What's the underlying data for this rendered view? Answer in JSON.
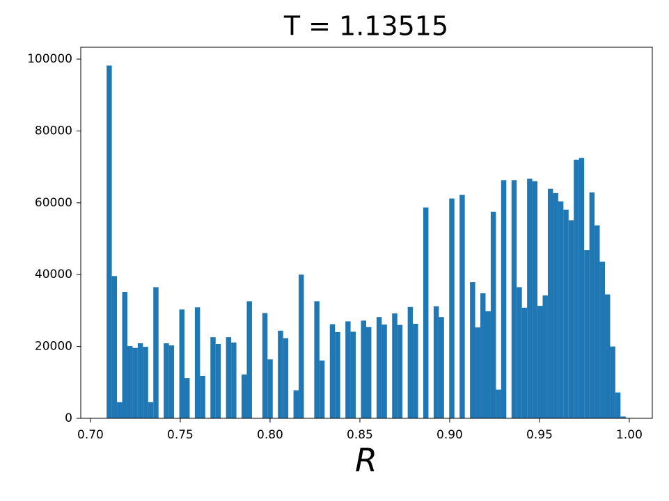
{
  "chart_data": {
    "type": "histogram",
    "title": "T = 1.13515",
    "x_label": "R",
    "color": "#1f77b4",
    "bins": [
      0.709,
      0.71189,
      0.71478,
      0.71767,
      0.72056,
      0.72345,
      0.72634,
      0.72923,
      0.73212,
      0.73501,
      0.7379,
      0.74079,
      0.74368,
      0.74657,
      0.74946,
      0.75235,
      0.75524,
      0.75813,
      0.76102,
      0.76391,
      0.7668,
      0.76969,
      0.77258,
      0.77547,
      0.77836,
      0.78125,
      0.78414,
      0.78703,
      0.78992,
      0.79281,
      0.7957,
      0.79859,
      0.80148,
      0.80437,
      0.80726,
      0.81015,
      0.81304,
      0.81593,
      0.81882,
      0.82171,
      0.8246,
      0.82749,
      0.83038,
      0.83327,
      0.83616,
      0.83905,
      0.84194,
      0.84483,
      0.84772,
      0.85061,
      0.8535,
      0.85639,
      0.85928,
      0.86217,
      0.86506,
      0.86795,
      0.87084,
      0.87373,
      0.87662,
      0.87951,
      0.8824,
      0.88529,
      0.88818,
      0.89107,
      0.89396,
      0.89685,
      0.89974,
      0.90263,
      0.90552,
      0.90841,
      0.9113,
      0.91419,
      0.91708,
      0.91997,
      0.92286,
      0.92575,
      0.92864,
      0.93153,
      0.93442,
      0.93731,
      0.9402,
      0.94309,
      0.94598,
      0.94887,
      0.95176,
      0.95465,
      0.95754,
      0.96043,
      0.96332,
      0.96621,
      0.9691,
      0.97199,
      0.97488,
      0.97777,
      0.98066,
      0.98355,
      0.98644,
      0.98933,
      0.99222,
      0.99511,
      0.998
    ],
    "values": [
      98200,
      39600,
      4500,
      35200,
      20100,
      19600,
      20900,
      19900,
      4500,
      36500,
      0,
      20900,
      20300,
      0,
      30300,
      11200,
      0,
      30900,
      11800,
      0,
      22600,
      20700,
      0,
      22600,
      21100,
      0,
      12200,
      32600,
      0,
      0,
      29300,
      16400,
      0,
      24400,
      22300,
      0,
      7800,
      40000,
      0,
      0,
      32600,
      16100,
      0,
      26200,
      24000,
      0,
      27000,
      24100,
      0,
      27200,
      25400,
      0,
      28200,
      26100,
      0,
      29200,
      26000,
      0,
      31000,
      26300,
      0,
      58700,
      0,
      31200,
      28200,
      0,
      61200,
      0,
      62200,
      0,
      37900,
      25300,
      34800,
      29800,
      57500,
      8000,
      66300,
      0,
      66300,
      36500,
      30800,
      66700,
      66000,
      31300,
      34200,
      63900,
      62700,
      60400,
      58100,
      55100,
      72000,
      72500,
      46800,
      62900,
      53700,
      43600,
      34500,
      20000,
      7200,
      500
    ],
    "xlim": [
      0.6946,
      1.0128
    ],
    "ylim": [
      0,
      103300
    ],
    "xticks": [
      {
        "value": 0.7,
        "label": "0.70"
      },
      0.75,
      {
        "value": 0.8,
        "label": "0.80"
      },
      0.85,
      {
        "value": 0.9,
        "label": "0.90"
      },
      0.95,
      {
        "value": 1.0,
        "label": "1.00"
      }
    ],
    "yticks": [
      0,
      20000,
      40000,
      60000,
      80000,
      100000
    ]
  }
}
